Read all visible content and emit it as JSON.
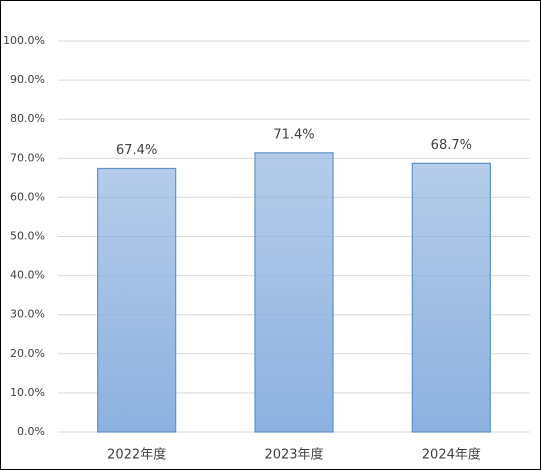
{
  "chart_data": {
    "type": "bar",
    "categories": [
      "2022年度",
      "2023年度",
      "2024年度"
    ],
    "values": [
      67.4,
      71.4,
      68.7
    ],
    "value_labels": [
      "67.4%",
      "71.4%",
      "68.7%"
    ],
    "color": "#8db1df",
    "edge_color": "#5e93c8",
    "ylim": [
      0,
      100
    ],
    "yticks": [
      {
        "value": 0,
        "label": "0.0%"
      },
      {
        "value": 10,
        "label": "10.0%"
      },
      {
        "value": 20,
        "label": "20.0%"
      },
      {
        "value": 30,
        "label": "30.0%"
      },
      {
        "value": 40,
        "label": "40.0%"
      },
      {
        "value": 50,
        "label": "50.0%"
      },
      {
        "value": 60,
        "label": "60.0%"
      },
      {
        "value": 70,
        "label": "70.0%"
      },
      {
        "value": 80,
        "label": "80.0%"
      },
      {
        "value": 90,
        "label": "90.0%"
      },
      {
        "value": 100,
        "label": "100.0%"
      }
    ],
    "grid": true
  }
}
